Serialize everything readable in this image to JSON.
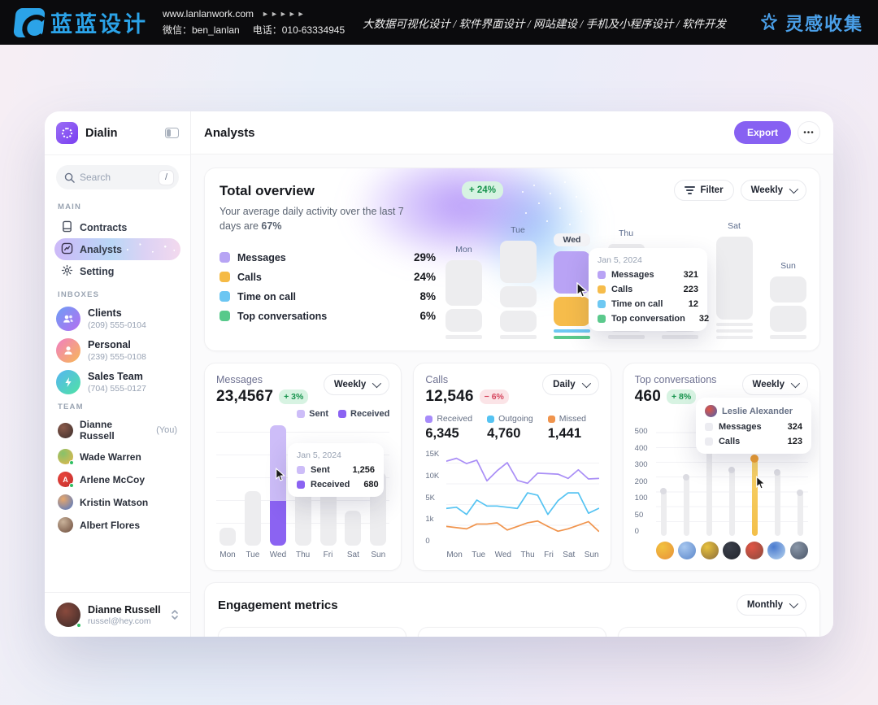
{
  "banner": {
    "brand": "蓝蓝设计",
    "website": "www.lanlanwork.com",
    "arrows": "►►►►►",
    "wechat": "微信：ben_lanlan",
    "phone": "电话：010-63334945",
    "services": [
      "大数据可视化设计",
      "软件界面设计",
      "网站建设",
      "手机及小程序设计",
      "软件开发"
    ],
    "collect": "灵感收集"
  },
  "sidebar": {
    "app_name": "Dialin",
    "search_placeholder": "Search",
    "search_shortcut": "/",
    "sections": {
      "main": "MAIN",
      "inboxes": "INBOXES",
      "team": "TEAM"
    },
    "main_items": [
      {
        "label": "Contracts",
        "icon": "contracts-icon",
        "active": false
      },
      {
        "label": "Analysts",
        "icon": "analysts-icon",
        "active": true
      },
      {
        "label": "Setting",
        "icon": "settings-icon",
        "active": false
      }
    ],
    "inboxes": [
      {
        "name": "Clients",
        "phone": "(209) 555-0104",
        "icon": "users",
        "colors": [
          "#6d9ef5",
          "#b66ef0"
        ]
      },
      {
        "name": "Personal",
        "phone": "(239) 555-0108",
        "icon": "user",
        "colors": [
          "#f07ec4",
          "#f7b955"
        ]
      },
      {
        "name": "Sales Team",
        "phone": "(704) 555-0127",
        "icon": "bolt",
        "colors": [
          "#56b5f2",
          "#4fe3a3"
        ]
      }
    ],
    "team": [
      {
        "name": "Dianne Russell",
        "suffix": "(You)",
        "online": false,
        "colors": [
          "#8a5a4a",
          "#3c2e2c"
        ],
        "initial": ""
      },
      {
        "name": "Wade Warren",
        "suffix": "",
        "online": true,
        "colors": [
          "#86c26b",
          "#e8b64a"
        ],
        "initial": ""
      },
      {
        "name": "Arlene McCoy",
        "suffix": "",
        "online": true,
        "colors": [
          "#e8453a",
          "#c32f2f"
        ],
        "initial": "A"
      },
      {
        "name": "Kristin Watson",
        "suffix": "",
        "online": false,
        "colors": [
          "#e8a76b",
          "#4a76c9"
        ],
        "initial": ""
      },
      {
        "name": "Albert Flores",
        "suffix": "",
        "online": false,
        "colors": [
          "#c9b29a",
          "#6b4a3a"
        ],
        "initial": ""
      }
    ],
    "profile": {
      "name": "Dianne Russell",
      "email": "russel@hey.com"
    }
  },
  "header": {
    "title": "Analysts",
    "export": "Export",
    "more": "•••"
  },
  "overview": {
    "title": "Total overview",
    "subtitle_a": "Your average daily activity over the last 7 days are ",
    "subtitle_pct": "67%",
    "badge": "+ 24%",
    "filter_label": "Filter",
    "period": "Weekly",
    "legend": [
      {
        "label": "Messages",
        "value": "29%",
        "color": "#b7a4f4"
      },
      {
        "label": "Calls",
        "value": "24%",
        "color": "#f5ba45"
      },
      {
        "label": "Time on call",
        "value": "8%",
        "color": "#6cc6f2"
      },
      {
        "label": "Top conversations",
        "value": "6%",
        "color": "#57c98a"
      }
    ],
    "columns": [
      {
        "day": "Mon",
        "blocks": [
          [
            "b",
            56
          ],
          [
            "b",
            28
          ],
          [
            "l",
            5
          ]
        ]
      },
      {
        "day": "Tue",
        "blocks": [
          [
            "b",
            52
          ],
          [
            "b",
            26
          ],
          [
            "b",
            26
          ],
          [
            "l",
            5
          ]
        ]
      },
      {
        "day": "Wed",
        "pill": true,
        "blocks": [
          [
            "c",
            52,
            "#b9a3f5"
          ],
          [
            "c",
            36,
            "#f6bc4b"
          ],
          [
            "cl",
            4,
            "#6ec8f2"
          ],
          [
            "cl",
            4,
            "#5bc98c"
          ]
        ]
      },
      {
        "day": "Thu",
        "blocks": [
          [
            "b",
            12
          ],
          [
            "b",
            46
          ],
          [
            "b",
            10
          ],
          [
            "b",
            28
          ],
          [
            "l",
            5
          ]
        ]
      },
      {
        "day": "",
        "blocks": [
          [
            "b",
            24
          ],
          [
            "l",
            5
          ]
        ]
      },
      {
        "day": "Sat",
        "blocks": [
          [
            "b",
            102
          ],
          [
            "l",
            4
          ],
          [
            "l",
            4
          ],
          [
            "l",
            4
          ]
        ]
      },
      {
        "day": "Sun",
        "blocks": [
          [
            "b",
            32
          ],
          [
            "b",
            32
          ],
          [
            "l",
            5
          ]
        ]
      }
    ],
    "tooltip": {
      "date": "Jan 5, 2024",
      "rows": [
        {
          "label": "Messages",
          "value": "321",
          "color": "#b9a3f5"
        },
        {
          "label": "Calls",
          "value": "223",
          "color": "#f6bc4b"
        },
        {
          "label": "Time on call",
          "value": "12",
          "color": "#6ec8f2"
        },
        {
          "label": "Top conversation",
          "value": "32",
          "color": "#5bc98c"
        }
      ]
    }
  },
  "messages": {
    "label": "Messages",
    "value": "23,4567",
    "badge": "+ 3%",
    "period": "Weekly",
    "legend": [
      {
        "label": "Sent",
        "color": "#cdbdf8"
      },
      {
        "label": "Received",
        "color": "#8b63f2"
      }
    ],
    "chart_data": {
      "type": "bar",
      "categories": [
        "Mon",
        "Tue",
        "Wed",
        "Thu",
        "Fri",
        "Sat",
        "Sun"
      ],
      "values_pct": [
        15,
        45,
        100,
        67,
        56,
        29,
        61
      ],
      "highlight_index": 2,
      "highlight_split": {
        "sent_pct": 63,
        "received_pct": 37
      }
    },
    "tooltip": {
      "date": "Jan 5, 2024",
      "rows": [
        {
          "label": "Sent",
          "value": "1,256",
          "color": "#cdbdf8"
        },
        {
          "label": "Received",
          "value": "680",
          "color": "#8b63f2"
        }
      ]
    }
  },
  "calls": {
    "label": "Calls",
    "value": "12,546",
    "badge": "− 6%",
    "period": "Daily",
    "stats": [
      {
        "label": "Received",
        "value": "6,345",
        "color": "#a78bfa"
      },
      {
        "label": "Outgoing",
        "value": "4,760",
        "color": "#55c3f2"
      },
      {
        "label": "Missed",
        "value": "1,441",
        "color": "#f0944d"
      }
    ],
    "chart_data": {
      "type": "line",
      "x": [
        "Mon",
        "Tue",
        "Wed",
        "Thu",
        "Fri",
        "Sat",
        "Sun"
      ],
      "y_ticks": [
        "15K",
        "10K",
        "5K",
        "1k",
        "0"
      ],
      "series": [
        {
          "name": "Received",
          "color": "#a98ef6",
          "values": [
            12.6,
            13.2,
            12.1,
            12.8,
            8.5,
            10.6,
            12.3,
            8.6,
            8.0,
            10.1,
            10.0,
            9.9,
            9.0,
            10.8,
            8.9,
            9.0
          ]
        },
        {
          "name": "Outgoing",
          "color": "#55c3f2",
          "values": [
            3.2,
            3.4,
            2.2,
            4.6,
            3.6,
            3.6,
            3.4,
            3.2,
            6.0,
            5.5,
            2.2,
            4.5,
            6.0,
            6.0,
            2.4,
            3.2
          ]
        },
        {
          "name": "Missed",
          "color": "#f0944d",
          "values": [
            0.8,
            0.75,
            0.7,
            0.9,
            0.9,
            0.95,
            0.65,
            0.8,
            0.95,
            1.1,
            0.8,
            0.6,
            0.7,
            0.85,
            1.0,
            0.6
          ]
        }
      ]
    }
  },
  "conversations": {
    "label": "Top conversations",
    "value": "460",
    "badge": "+ 8%",
    "period": "Weekly",
    "chart_data": {
      "type": "lollipop",
      "y_ticks": [
        500,
        400,
        300,
        200,
        100,
        50,
        0
      ],
      "values": [
        150,
        225,
        500,
        265,
        330,
        255,
        140
      ],
      "highlight_index": 4,
      "avatars": [
        [
          "#f2c23e",
          "#e8913a"
        ],
        [
          "#a8c8f0",
          "#5b86c9"
        ],
        [
          "#e8c23e",
          "#8a6b3a"
        ],
        [
          "#3a3f4a",
          "#23262e"
        ],
        [
          "#e05545",
          "#8a4a3d"
        ],
        [
          "#4a7bd0",
          "#b8d4ee"
        ],
        [
          "#8a97a8",
          "#4a5568"
        ]
      ]
    },
    "tooltip": {
      "name": "Leslie Alexander",
      "rows": [
        {
          "label": "Messages",
          "value": "324",
          "color": "#ececf1"
        },
        {
          "label": "Calls",
          "value": "123",
          "color": "#ececf1"
        }
      ]
    }
  },
  "engagement": {
    "title": "Engagement metrics",
    "period": "Monthly",
    "placeholders": 3
  }
}
